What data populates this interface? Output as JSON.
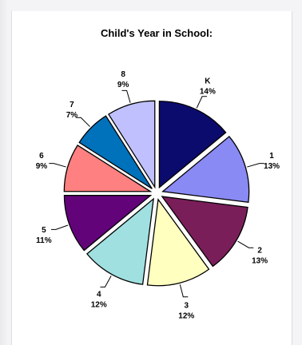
{
  "chart_data": {
    "type": "pie",
    "title": "Child's Year in School:",
    "slices": [
      {
        "label": "K",
        "percent": "14%",
        "value": 14,
        "color": "#0b0b6e"
      },
      {
        "label": "1",
        "percent": "13%",
        "value": 13,
        "color": "#8a8af5"
      },
      {
        "label": "2",
        "percent": "13%",
        "value": 13,
        "color": "#7a1e5a"
      },
      {
        "label": "3",
        "percent": "12%",
        "value": 12,
        "color": "#ffffc0"
      },
      {
        "label": "4",
        "percent": "12%",
        "value": 12,
        "color": "#a0e0e0"
      },
      {
        "label": "5",
        "percent": "11%",
        "value": 11,
        "color": "#62037a"
      },
      {
        "label": "6",
        "percent": "9%",
        "value": 9,
        "color": "#ff8080"
      },
      {
        "label": "7",
        "percent": "7%",
        "value": 7,
        "color": "#0071bb"
      },
      {
        "label": "8",
        "percent": "9%",
        "value": 9,
        "color": "#c0c0ff"
      }
    ]
  }
}
